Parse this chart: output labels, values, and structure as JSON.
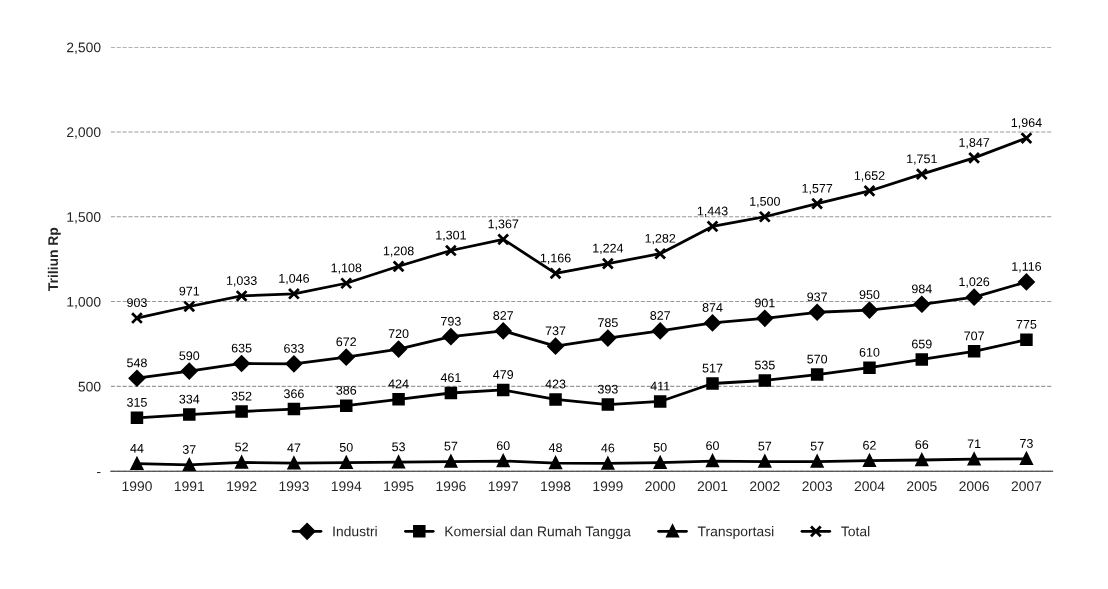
{
  "chart_data": {
    "type": "line",
    "ylabel": "Triliun Rp",
    "categories": [
      "1990",
      "1991",
      "1992",
      "1993",
      "1994",
      "1995",
      "1996",
      "1997",
      "1998",
      "1999",
      "2000",
      "2001",
      "2002",
      "2003",
      "2004",
      "2005",
      "2006",
      "2007"
    ],
    "series": [
      {
        "name": "Industri",
        "color": "#000000",
        "marker": "diamond",
        "values": [
          548,
          590,
          635,
          633,
          672,
          720,
          793,
          827,
          737,
          785,
          827,
          874,
          901,
          937,
          950,
          984,
          1026,
          1116
        ],
        "value_labels": [
          "548",
          "590",
          "635",
          "633",
          "672",
          "720",
          "793",
          "827",
          "737",
          "785",
          "827",
          "874",
          "901",
          "937",
          "950",
          "984",
          "1,026",
          "1,116"
        ]
      },
      {
        "name": "Komersial dan Rumah Tangga",
        "color": "#000000",
        "marker": "square",
        "values": [
          315,
          334,
          352,
          366,
          386,
          424,
          461,
          479,
          423,
          393,
          411,
          517,
          535,
          570,
          610,
          659,
          707,
          775
        ],
        "value_labels": [
          "315",
          "334",
          "352",
          "366",
          "386",
          "424",
          "461",
          "479",
          "423",
          "393",
          "411",
          "517",
          "535",
          "570",
          "610",
          "659",
          "707",
          "775"
        ]
      },
      {
        "name": "Transportasi",
        "color": "#000000",
        "marker": "triangle",
        "values": [
          44,
          37,
          52,
          47,
          50,
          53,
          57,
          60,
          48,
          46,
          50,
          60,
          57,
          57,
          62,
          66,
          71,
          73
        ],
        "value_labels": [
          "44",
          "37",
          "52",
          "47",
          "50",
          "53",
          "57",
          "60",
          "48",
          "46",
          "50",
          "60",
          "57",
          "57",
          "62",
          "66",
          "71",
          "73"
        ]
      },
      {
        "name": "Total",
        "color": "#000000",
        "marker": "cross",
        "values": [
          903,
          971,
          1033,
          1046,
          1108,
          1208,
          1301,
          1367,
          1166,
          1224,
          1282,
          1443,
          1500,
          1577,
          1652,
          1751,
          1847,
          1964
        ],
        "value_labels": [
          "903",
          "971",
          "1,033",
          "1,046",
          "1,108",
          "1,208",
          "1,301",
          "1,367",
          "1,166",
          "1,224",
          "1,282",
          "1,443",
          "1,500",
          "1,577",
          "1,652",
          "1,751",
          "1,847",
          "1,964"
        ]
      }
    ],
    "ylim": [
      0,
      2500
    ],
    "yticks": [
      {
        "value": 0,
        "label": "-"
      },
      500,
      {
        "value": 1000,
        "label": "1,000"
      },
      {
        "value": 1500,
        "label": "1,500"
      },
      {
        "value": 2000,
        "label": "2,000"
      },
      {
        "value": 2500,
        "label": "2,500"
      }
    ],
    "grid": "y",
    "legend": "bottom"
  }
}
